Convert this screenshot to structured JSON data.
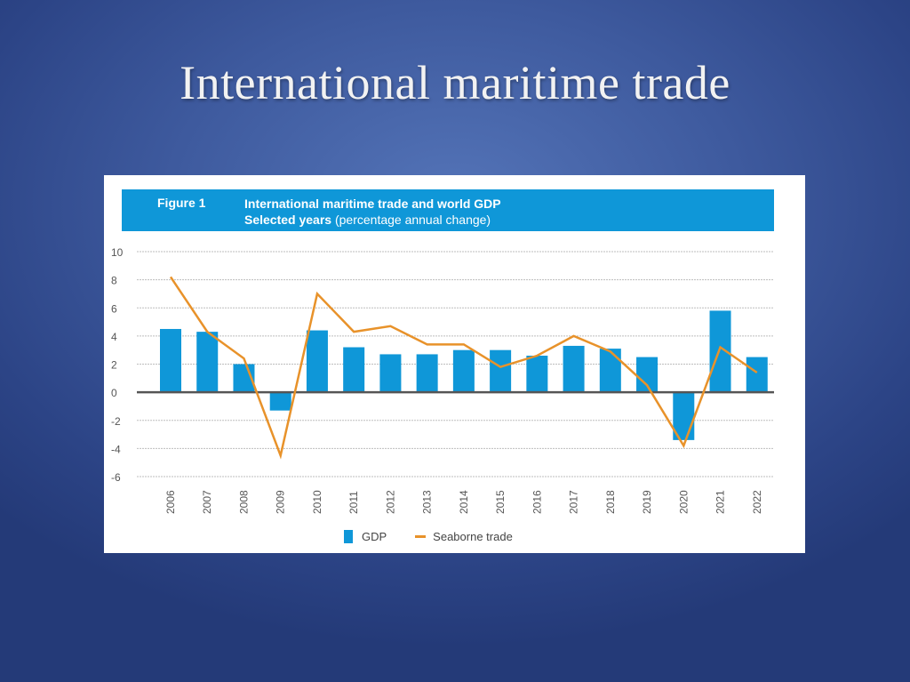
{
  "slide": {
    "title": "International maritime trade"
  },
  "figure": {
    "label": "Figure 1",
    "title": "International maritime trade and world GDP",
    "subtitle_bold": "Selected years",
    "subtitle_note": "(percentage annual change)"
  },
  "legend": {
    "gdp_label": "GDP",
    "seaborne_label": "Seaborne trade"
  },
  "colors": {
    "gdp": "#0f97d8",
    "seaborne": "#e8922a",
    "header": "#0f97d8",
    "zero_line": "#555555",
    "grid": "#bdbdbd"
  },
  "chart_data": {
    "type": "bar",
    "title": "International maritime trade and world GDP",
    "subtitle": "Selected years (percentage annual change)",
    "xlabel": "",
    "ylabel": "",
    "ylim": [
      -6,
      10
    ],
    "yticks": [
      10,
      8,
      6,
      4,
      2,
      0,
      -2,
      -4,
      -6
    ],
    "grid": true,
    "legend_position": "bottom",
    "categories": [
      "2006",
      "2007",
      "2008",
      "2009",
      "2010",
      "2011",
      "2012",
      "2013",
      "2014",
      "2015",
      "2016",
      "2017",
      "2018",
      "2019",
      "2020",
      "2021",
      "2022"
    ],
    "series": [
      {
        "name": "GDP",
        "type": "bar",
        "values": [
          4.5,
          4.3,
          2.0,
          -1.3,
          4.4,
          3.2,
          2.7,
          2.7,
          3.0,
          3.0,
          2.6,
          3.3,
          3.1,
          2.5,
          -3.4,
          5.8,
          2.5
        ]
      },
      {
        "name": "Seaborne trade",
        "type": "line",
        "values": [
          8.2,
          4.3,
          2.4,
          -4.5,
          7.0,
          4.3,
          4.7,
          3.4,
          3.4,
          1.8,
          2.6,
          4.0,
          2.9,
          0.5,
          -3.8,
          3.2,
          1.4
        ]
      }
    ]
  }
}
